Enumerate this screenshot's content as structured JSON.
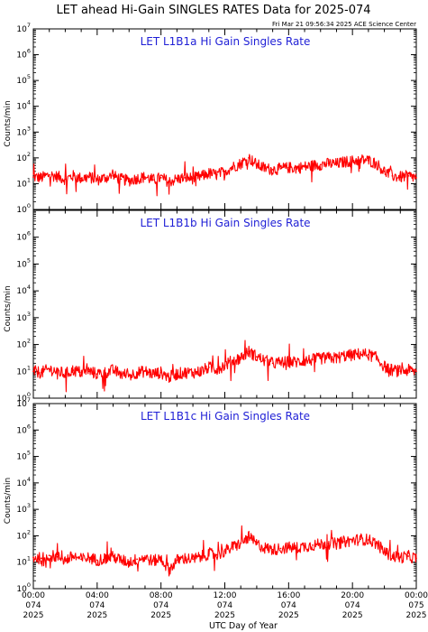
{
  "figure": {
    "title": "LET ahead Hi-Gain SINGLES RATES Data for 2025-074",
    "timestamp": "Fri Mar 21 09:56:34 2025 ACE Science Center",
    "xlabel": "UTC Day of Year",
    "colors": {
      "trace": "#ff0000",
      "panel_title": "#1f1fd6",
      "axes": "#000000",
      "background": "#ffffff"
    }
  },
  "chart_data": [
    {
      "type": "line",
      "title": "LET L1B1a Hi Gain Singles Rate",
      "ylabel": "Counts/min",
      "yscale": "log",
      "ylim": [
        1,
        10000000
      ],
      "xlim": [
        0,
        24
      ],
      "y_ticks": [
        {
          "base": "10",
          "exp": "7"
        },
        {
          "base": "10",
          "exp": "6"
        },
        {
          "base": "10",
          "exp": "5"
        },
        {
          "base": "10",
          "exp": "4"
        },
        {
          "base": "10",
          "exp": "3"
        },
        {
          "base": "10",
          "exp": "2"
        },
        {
          "base": "10",
          "exp": "1"
        },
        {
          "base": "10",
          "exp": "0"
        }
      ],
      "series": [
        {
          "x": [
            0,
            0.5,
            1,
            1.5,
            2,
            2.5,
            3,
            3.5,
            4,
            4.5,
            5,
            5.5,
            6,
            6.5,
            7,
            7.5,
            8,
            8.5,
            9,
            9.5,
            10,
            10.5,
            11,
            11.5,
            12,
            12.5,
            13,
            13.5,
            14,
            14.5,
            15,
            15.5,
            16,
            16.5,
            17,
            17.5,
            18,
            18.5,
            19,
            19.5,
            20,
            20.5,
            21,
            21.5,
            22,
            22.5,
            23,
            23.5,
            24
          ],
          "y": [
            18,
            17,
            22,
            19,
            15,
            20,
            16,
            18,
            14,
            17,
            20,
            15,
            13,
            16,
            18,
            14,
            17,
            12,
            15,
            17,
            16,
            19,
            25,
            22,
            30,
            45,
            60,
            100,
            55,
            40,
            35,
            38,
            42,
            40,
            45,
            50,
            55,
            60,
            58,
            70,
            75,
            85,
            80,
            60,
            30,
            20,
            18,
            20,
            17
          ]
        }
      ]
    },
    {
      "type": "line",
      "title": "LET L1B1b Hi Gain Singles Rate",
      "ylabel": "Counts/min",
      "yscale": "log",
      "ylim": [
        1,
        10000000
      ],
      "xlim": [
        0,
        24
      ],
      "y_ticks": [
        {
          "base": "10",
          "exp": "6"
        },
        {
          "base": "10",
          "exp": "5"
        },
        {
          "base": "10",
          "exp": "4"
        },
        {
          "base": "10",
          "exp": "3"
        },
        {
          "base": "10",
          "exp": "2"
        },
        {
          "base": "10",
          "exp": "1"
        },
        {
          "base": "10",
          "exp": "0"
        }
      ],
      "series": [
        {
          "x": [
            0,
            0.5,
            1,
            1.5,
            2,
            2.5,
            3,
            3.5,
            4,
            4.5,
            5,
            5.5,
            6,
            6.5,
            7,
            7.5,
            8,
            8.5,
            9,
            9.5,
            10,
            10.5,
            11,
            11.5,
            12,
            12.5,
            13,
            13.5,
            14,
            14.5,
            15,
            15.5,
            16,
            16.5,
            17,
            17.5,
            18,
            18.5,
            19,
            19.5,
            20,
            20.5,
            21,
            21.5,
            22,
            22.5,
            23,
            23.5,
            24
          ],
          "y": [
            10,
            9,
            12,
            10,
            8,
            11,
            9,
            10,
            8,
            9,
            11,
            8,
            7,
            9,
            10,
            8,
            9,
            6,
            8,
            9,
            9,
            10,
            14,
            12,
            17,
            25,
            32,
            55,
            35,
            25,
            20,
            21,
            23,
            22,
            25,
            27,
            30,
            32,
            31,
            38,
            40,
            45,
            42,
            32,
            15,
            11,
            10,
            11,
            10
          ]
        }
      ]
    },
    {
      "type": "line",
      "title": "LET L1B1c Hi Gain Singles Rate",
      "ylabel": "Counts/min",
      "yscale": "log",
      "ylim": [
        1,
        10000000
      ],
      "xlim": [
        0,
        24
      ],
      "y_ticks": [
        {
          "base": "10",
          "exp": "7"
        },
        {
          "base": "10",
          "exp": "6"
        },
        {
          "base": "10",
          "exp": "5"
        },
        {
          "base": "10",
          "exp": "4"
        },
        {
          "base": "10",
          "exp": "3"
        },
        {
          "base": "10",
          "exp": "2"
        },
        {
          "base": "10",
          "exp": "1"
        },
        {
          "base": "10",
          "exp": "0"
        }
      ],
      "series": [
        {
          "x": [
            0,
            0.5,
            1,
            1.5,
            2,
            2.5,
            3,
            3.5,
            4,
            4.5,
            5,
            5.5,
            6,
            6.5,
            7,
            7.5,
            8,
            8.5,
            9,
            9.5,
            10,
            10.5,
            11,
            11.5,
            12,
            12.5,
            13,
            13.5,
            14,
            14.5,
            15,
            15.5,
            16,
            16.5,
            17,
            17.5,
            18,
            18.5,
            19,
            19.5,
            20,
            20.5,
            21,
            21.5,
            22,
            22.5,
            23,
            23.5,
            24
          ],
          "y": [
            15,
            14,
            18,
            16,
            12,
            17,
            13,
            15,
            12,
            14,
            16,
            12,
            10,
            13,
            15,
            11,
            14,
            5,
            12,
            14,
            13,
            16,
            21,
            19,
            26,
            38,
            52,
            90,
            48,
            35,
            30,
            33,
            36,
            35,
            40,
            44,
            48,
            52,
            50,
            60,
            66,
            74,
            70,
            52,
            25,
            17,
            15,
            17,
            14
          ]
        }
      ]
    }
  ],
  "x_ticks": [
    {
      "time": "00:00",
      "day": "074",
      "year": "2025"
    },
    {
      "time": "04:00",
      "day": "074",
      "year": "2025"
    },
    {
      "time": "08:00",
      "day": "074",
      "year": "2025"
    },
    {
      "time": "12:00",
      "day": "074",
      "year": "2025"
    },
    {
      "time": "16:00",
      "day": "074",
      "year": "2025"
    },
    {
      "time": "20:00",
      "day": "074",
      "year": "2025"
    },
    {
      "time": "00:00",
      "day": "075",
      "year": "2025"
    }
  ]
}
